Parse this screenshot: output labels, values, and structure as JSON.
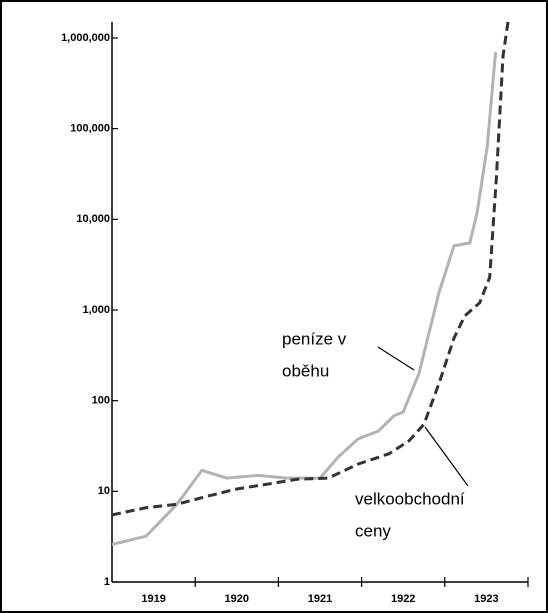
{
  "chart_data": {
    "type": "line",
    "log_y": true,
    "categories": [
      "1919",
      "1920",
      "1921",
      "1922",
      "1923"
    ],
    "xlim": [
      1919,
      1924
    ],
    "ylim": [
      1,
      1500000
    ],
    "yticks": [
      1,
      10,
      100,
      {
        "value": 1000,
        "label": "1,000"
      },
      {
        "value": 10000,
        "label": "10,000"
      },
      {
        "value": 100000,
        "label": "100,000"
      },
      {
        "value": 1000000,
        "label": "1,000,000"
      }
    ],
    "series": [
      {
        "name": [
          "peníze v",
          "oběhu"
        ],
        "color": "#b3b3b3",
        "dashed": false,
        "x": [
          1919.0,
          1919.41,
          1919.78,
          1920.08,
          1920.38,
          1920.75,
          1921.11,
          1921.5,
          1921.72,
          1921.96,
          1922.2,
          1922.39,
          1922.5,
          1922.69,
          1922.93,
          1923.11,
          1923.3,
          1923.39,
          1923.51,
          1923.61
        ],
        "values": [
          2.6,
          3.2,
          7.2,
          17,
          14,
          15,
          14,
          14,
          24,
          38,
          46,
          68,
          75,
          200,
          1560,
          5100,
          5500,
          12000,
          63000,
          700000
        ]
      },
      {
        "name": [
          "velkoobchodní",
          "ceny"
        ],
        "color": "#333333",
        "dashed": true,
        "x": [
          1919.0,
          1919.41,
          1919.78,
          1920.14,
          1920.5,
          1920.87,
          1921.23,
          1921.6,
          1921.96,
          1922.33,
          1922.57,
          1922.75,
          1922.93,
          1923.11,
          1923.24,
          1923.42,
          1923.54,
          1923.62,
          1923.7,
          1923.76
        ],
        "values": [
          5.5,
          6.6,
          7.2,
          8.8,
          10.6,
          12,
          13.6,
          14,
          20,
          26,
          36,
          55,
          155,
          490,
          860,
          1200,
          2300,
          29000,
          630000,
          1500000
        ]
      }
    ]
  }
}
